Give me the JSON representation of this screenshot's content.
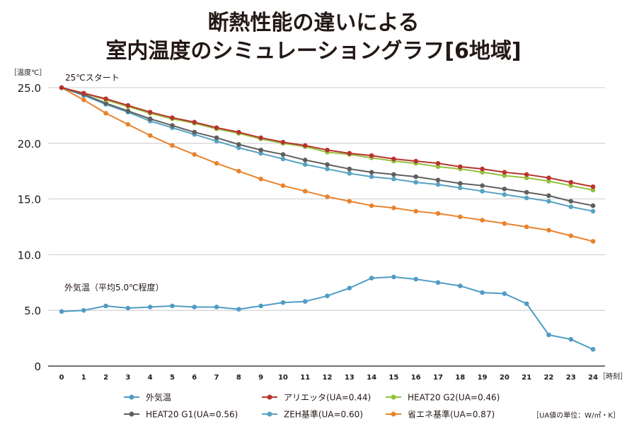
{
  "chart_data": {
    "type": "line",
    "title_lines": [
      "断熱性能の違いによる",
      "室内温度のシミュレーショングラフ[6地域]"
    ],
    "ylabel": "［温度℃］",
    "xlabel": "［時刻］",
    "ylim": [
      0,
      25
    ],
    "yticks": [
      0,
      5,
      10,
      15,
      20,
      25
    ],
    "ytick_labels": [
      "0",
      "5.0",
      "10.0",
      "15.0",
      "20.0",
      "25.0"
    ],
    "x": [
      0,
      1,
      2,
      3,
      4,
      5,
      6,
      7,
      8,
      9,
      10,
      11,
      12,
      13,
      14,
      15,
      16,
      17,
      18,
      19,
      20,
      21,
      22,
      23,
      24
    ],
    "grid": true,
    "legend_position": "bottom",
    "annotations": {
      "start": "25℃スタート",
      "outdoor": "外気温（平均5.0℃程度）"
    },
    "note": "［UA値の単位：W/㎡・K］",
    "series": [
      {
        "name": "外気温",
        "color": "#4f9cc4",
        "values": [
          4.9,
          5.0,
          5.4,
          5.2,
          5.3,
          5.4,
          5.3,
          5.3,
          5.1,
          5.4,
          5.7,
          5.8,
          6.3,
          7.0,
          7.9,
          8.0,
          7.8,
          7.5,
          7.2,
          6.6,
          6.5,
          5.6,
          2.8,
          2.4,
          1.5
        ]
      },
      {
        "name": "アリエッタ(UA=0.44)",
        "color": "#b8342f",
        "values": [
          25.0,
          24.5,
          24.0,
          23.4,
          22.8,
          22.3,
          21.9,
          21.4,
          21.0,
          20.5,
          20.1,
          19.8,
          19.4,
          19.1,
          18.9,
          18.6,
          18.4,
          18.2,
          17.9,
          17.7,
          17.4,
          17.2,
          16.9,
          16.5,
          16.1
        ]
      },
      {
        "name": "HEAT20 G2(UA=0.46)",
        "color": "#93c13d",
        "values": [
          25.0,
          24.5,
          23.9,
          23.3,
          22.7,
          22.2,
          21.8,
          21.3,
          20.9,
          20.4,
          20.0,
          19.7,
          19.2,
          19.0,
          18.7,
          18.4,
          18.2,
          17.9,
          17.7,
          17.4,
          17.1,
          16.9,
          16.6,
          16.2,
          15.8
        ]
      },
      {
        "name": "HEAT20 G1(UA=0.56)",
        "color": "#5f5f5f",
        "values": [
          25.0,
          24.4,
          23.6,
          22.9,
          22.2,
          21.6,
          21.0,
          20.5,
          19.9,
          19.4,
          19.0,
          18.5,
          18.1,
          17.7,
          17.4,
          17.2,
          17.0,
          16.7,
          16.4,
          16.2,
          15.9,
          15.6,
          15.3,
          14.8,
          14.4
        ]
      },
      {
        "name": "ZEH基準(UA=0.60)",
        "color": "#58a2c3",
        "values": [
          25.0,
          24.3,
          23.5,
          22.8,
          22.0,
          21.4,
          20.8,
          20.2,
          19.6,
          19.1,
          18.6,
          18.1,
          17.7,
          17.3,
          17.0,
          16.8,
          16.5,
          16.3,
          16.0,
          15.7,
          15.4,
          15.1,
          14.8,
          14.3,
          13.9
        ]
      },
      {
        "name": "省エネ基準(UA=0.87)",
        "color": "#e8832e",
        "values": [
          25.0,
          23.9,
          22.7,
          21.7,
          20.7,
          19.8,
          19.0,
          18.2,
          17.5,
          16.8,
          16.2,
          15.7,
          15.2,
          14.8,
          14.4,
          14.2,
          13.9,
          13.7,
          13.4,
          13.1,
          12.8,
          12.5,
          12.2,
          11.7,
          11.2
        ]
      }
    ]
  }
}
